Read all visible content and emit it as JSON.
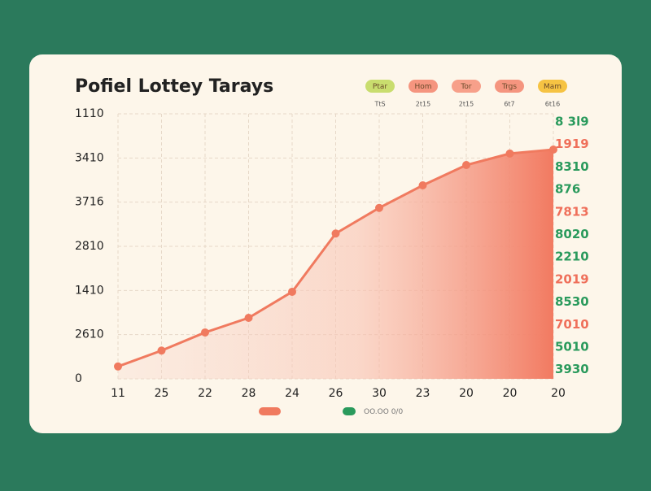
{
  "chart_data": {
    "type": "line",
    "title": "Pofiel Lottey Tarays",
    "top_legend": [
      {
        "label": "Ptar",
        "sublabel": "TtS",
        "color": "#c9dd6e"
      },
      {
        "label": "Hom",
        "sublabel": "2t15",
        "color": "#f5957f"
      },
      {
        "label": "Tor",
        "sublabel": "2t15",
        "color": "#f7a08a"
      },
      {
        "label": "Trgs",
        "sublabel": "6t7",
        "color": "#f5957f"
      },
      {
        "label": "Mam",
        "sublabel": "6t16",
        "color": "#f6c343"
      }
    ],
    "categories": [
      "11",
      "25",
      "22",
      "28",
      "24",
      "26",
      "30",
      "23",
      "20",
      "20",
      "20"
    ],
    "series": [
      {
        "color": "#f07a5f",
        "values": [
          0.28,
          0.64,
          1.05,
          1.38,
          1.97,
          3.29,
          3.87,
          4.38,
          4.84,
          5.1,
          5.19
        ]
      }
    ],
    "ylim": [
      0,
      6
    ],
    "yticks": [
      {
        "value": 0,
        "label": "0"
      },
      {
        "value": 1,
        "label": "2610"
      },
      {
        "value": 2,
        "label": "1410"
      },
      {
        "value": 3,
        "label": "2810"
      },
      {
        "value": 4,
        "label": "3716"
      },
      {
        "value": 5,
        "label": "3410"
      },
      {
        "value": 6,
        "label": "1110"
      }
    ],
    "right_labels": [
      {
        "text": "8 3l9",
        "color": "#2a9a5c"
      },
      {
        "text": "1919",
        "color": "#ef6f5a"
      },
      {
        "text": "8310",
        "color": "#2a9a5c"
      },
      {
        "text": "876",
        "color": "#2a9a5c"
      },
      {
        "text": "7813",
        "color": "#ef6f5a"
      },
      {
        "text": "8020",
        "color": "#2a9a5c"
      },
      {
        "text": "2210",
        "color": "#2a9a5c"
      },
      {
        "text": "2019",
        "color": "#ef6f5a"
      },
      {
        "text": "8530",
        "color": "#2a9a5c"
      },
      {
        "text": "7010",
        "color": "#ef6f5a"
      },
      {
        "text": "5010",
        "color": "#2a9a5c"
      },
      {
        "text": "3930",
        "color": "#2a9a5c"
      }
    ],
    "bottom_legend": [
      {
        "color": "#f07a5f"
      },
      {
        "color": "#2a9a5c",
        "label": "OO.OO 0/0"
      }
    ],
    "grid": true
  }
}
